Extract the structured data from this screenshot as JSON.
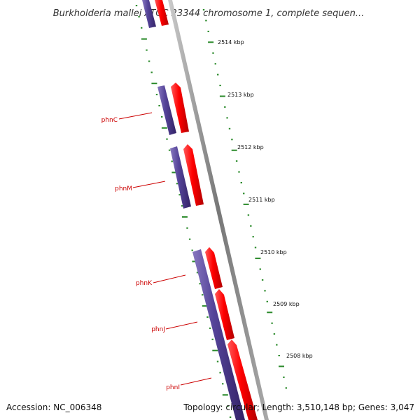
{
  "title": "Burkholderia mallei ATCC 23344 chromosome 1, complete sequen...",
  "accession": "Accession: NC_006348",
  "summary": "Topology: circular; Length: 3,510,148 bp; Genes: 3,047",
  "colors": {
    "forward_strand": "#ff0000",
    "reverse_strand": "#554499",
    "backbone": "#888888",
    "tick": "#2a8a2a",
    "label": "#cc0000"
  },
  "kbp_labels": [
    "2514 kbp",
    "2513 kbp",
    "2512 kbp",
    "2511 kbp",
    "2510 kbp",
    "2509 kbp",
    "2508 kbp"
  ],
  "genes": [
    {
      "name": "phnC"
    },
    {
      "name": "phnM"
    },
    {
      "name": "phnK"
    },
    {
      "name": "phnJ"
    },
    {
      "name": "phnI"
    }
  ]
}
